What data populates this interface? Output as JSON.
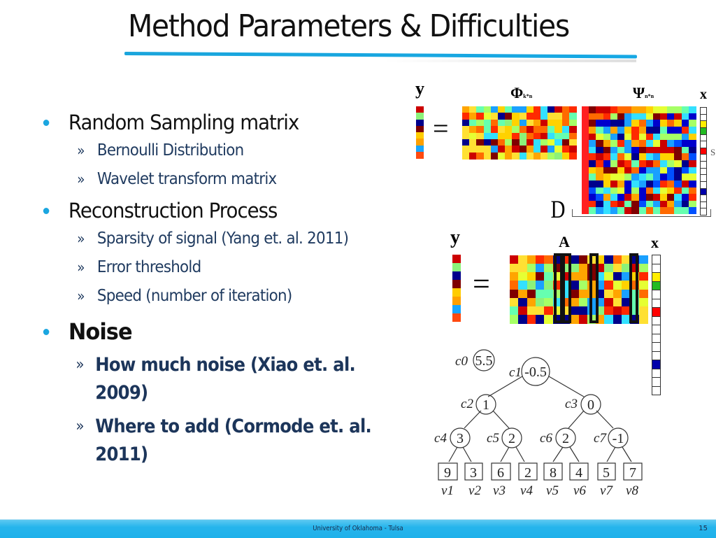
{
  "slide": {
    "title": "Method Parameters & Difficulties",
    "bullets": [
      {
        "label": "Random Sampling matrix",
        "bold": false,
        "children": [
          "Bernoulli Distribution",
          "Wavelet transform matrix"
        ]
      },
      {
        "label": "Reconstruction Process",
        "bold": false,
        "children": [
          "Sparsity of signal (Yang  et. al. 2011)",
          "Error threshold",
          "Speed (number of iteration)"
        ]
      },
      {
        "label": "Noise",
        "bold": true,
        "children": [
          "How much noise (Xiao et. al. 2009)",
          "Where to add (Cormode et. al. 2011)"
        ]
      }
    ],
    "sub_bullet_glyph": "»",
    "footer": {
      "text": "University of Oklahoma - Tulsa",
      "page_number": "15"
    },
    "colors": {
      "accent": "#1ba6e0",
      "sub_text": "#1f3a5f",
      "footer_bg": "#22b2eb"
    }
  },
  "figure_top": {
    "label_y": "y",
    "label_phi": "Φ",
    "label_phi_sub": "k*n",
    "label_psi": "Ψ",
    "label_psi_sub": "n*n",
    "label_x": "x",
    "label_D": "D",
    "label_s": "S",
    "equals": "="
  },
  "figure_mid": {
    "label_y": "y",
    "label_A": "A",
    "label_x": "x",
    "equals": "="
  },
  "wavelet_tree": {
    "c0": {
      "label": "c0",
      "value": "5.5"
    },
    "nodes": [
      {
        "label": "c1",
        "value": "-0.5"
      },
      {
        "label": "c2",
        "value": "1"
      },
      {
        "label": "c3",
        "value": "0"
      },
      {
        "label": "c4",
        "value": "3"
      },
      {
        "label": "c5",
        "value": "2"
      },
      {
        "label": "c6",
        "value": "2"
      },
      {
        "label": "c7",
        "value": "-1"
      }
    ],
    "leaves": [
      {
        "label": "v1",
        "value": "9"
      },
      {
        "label": "v2",
        "value": "3"
      },
      {
        "label": "v3",
        "value": "6"
      },
      {
        "label": "v4",
        "value": "2"
      },
      {
        "label": "v5",
        "value": "8"
      },
      {
        "label": "v6",
        "value": "4"
      },
      {
        "label": "v7",
        "value": "5"
      },
      {
        "label": "v8",
        "value": "7"
      }
    ]
  }
}
